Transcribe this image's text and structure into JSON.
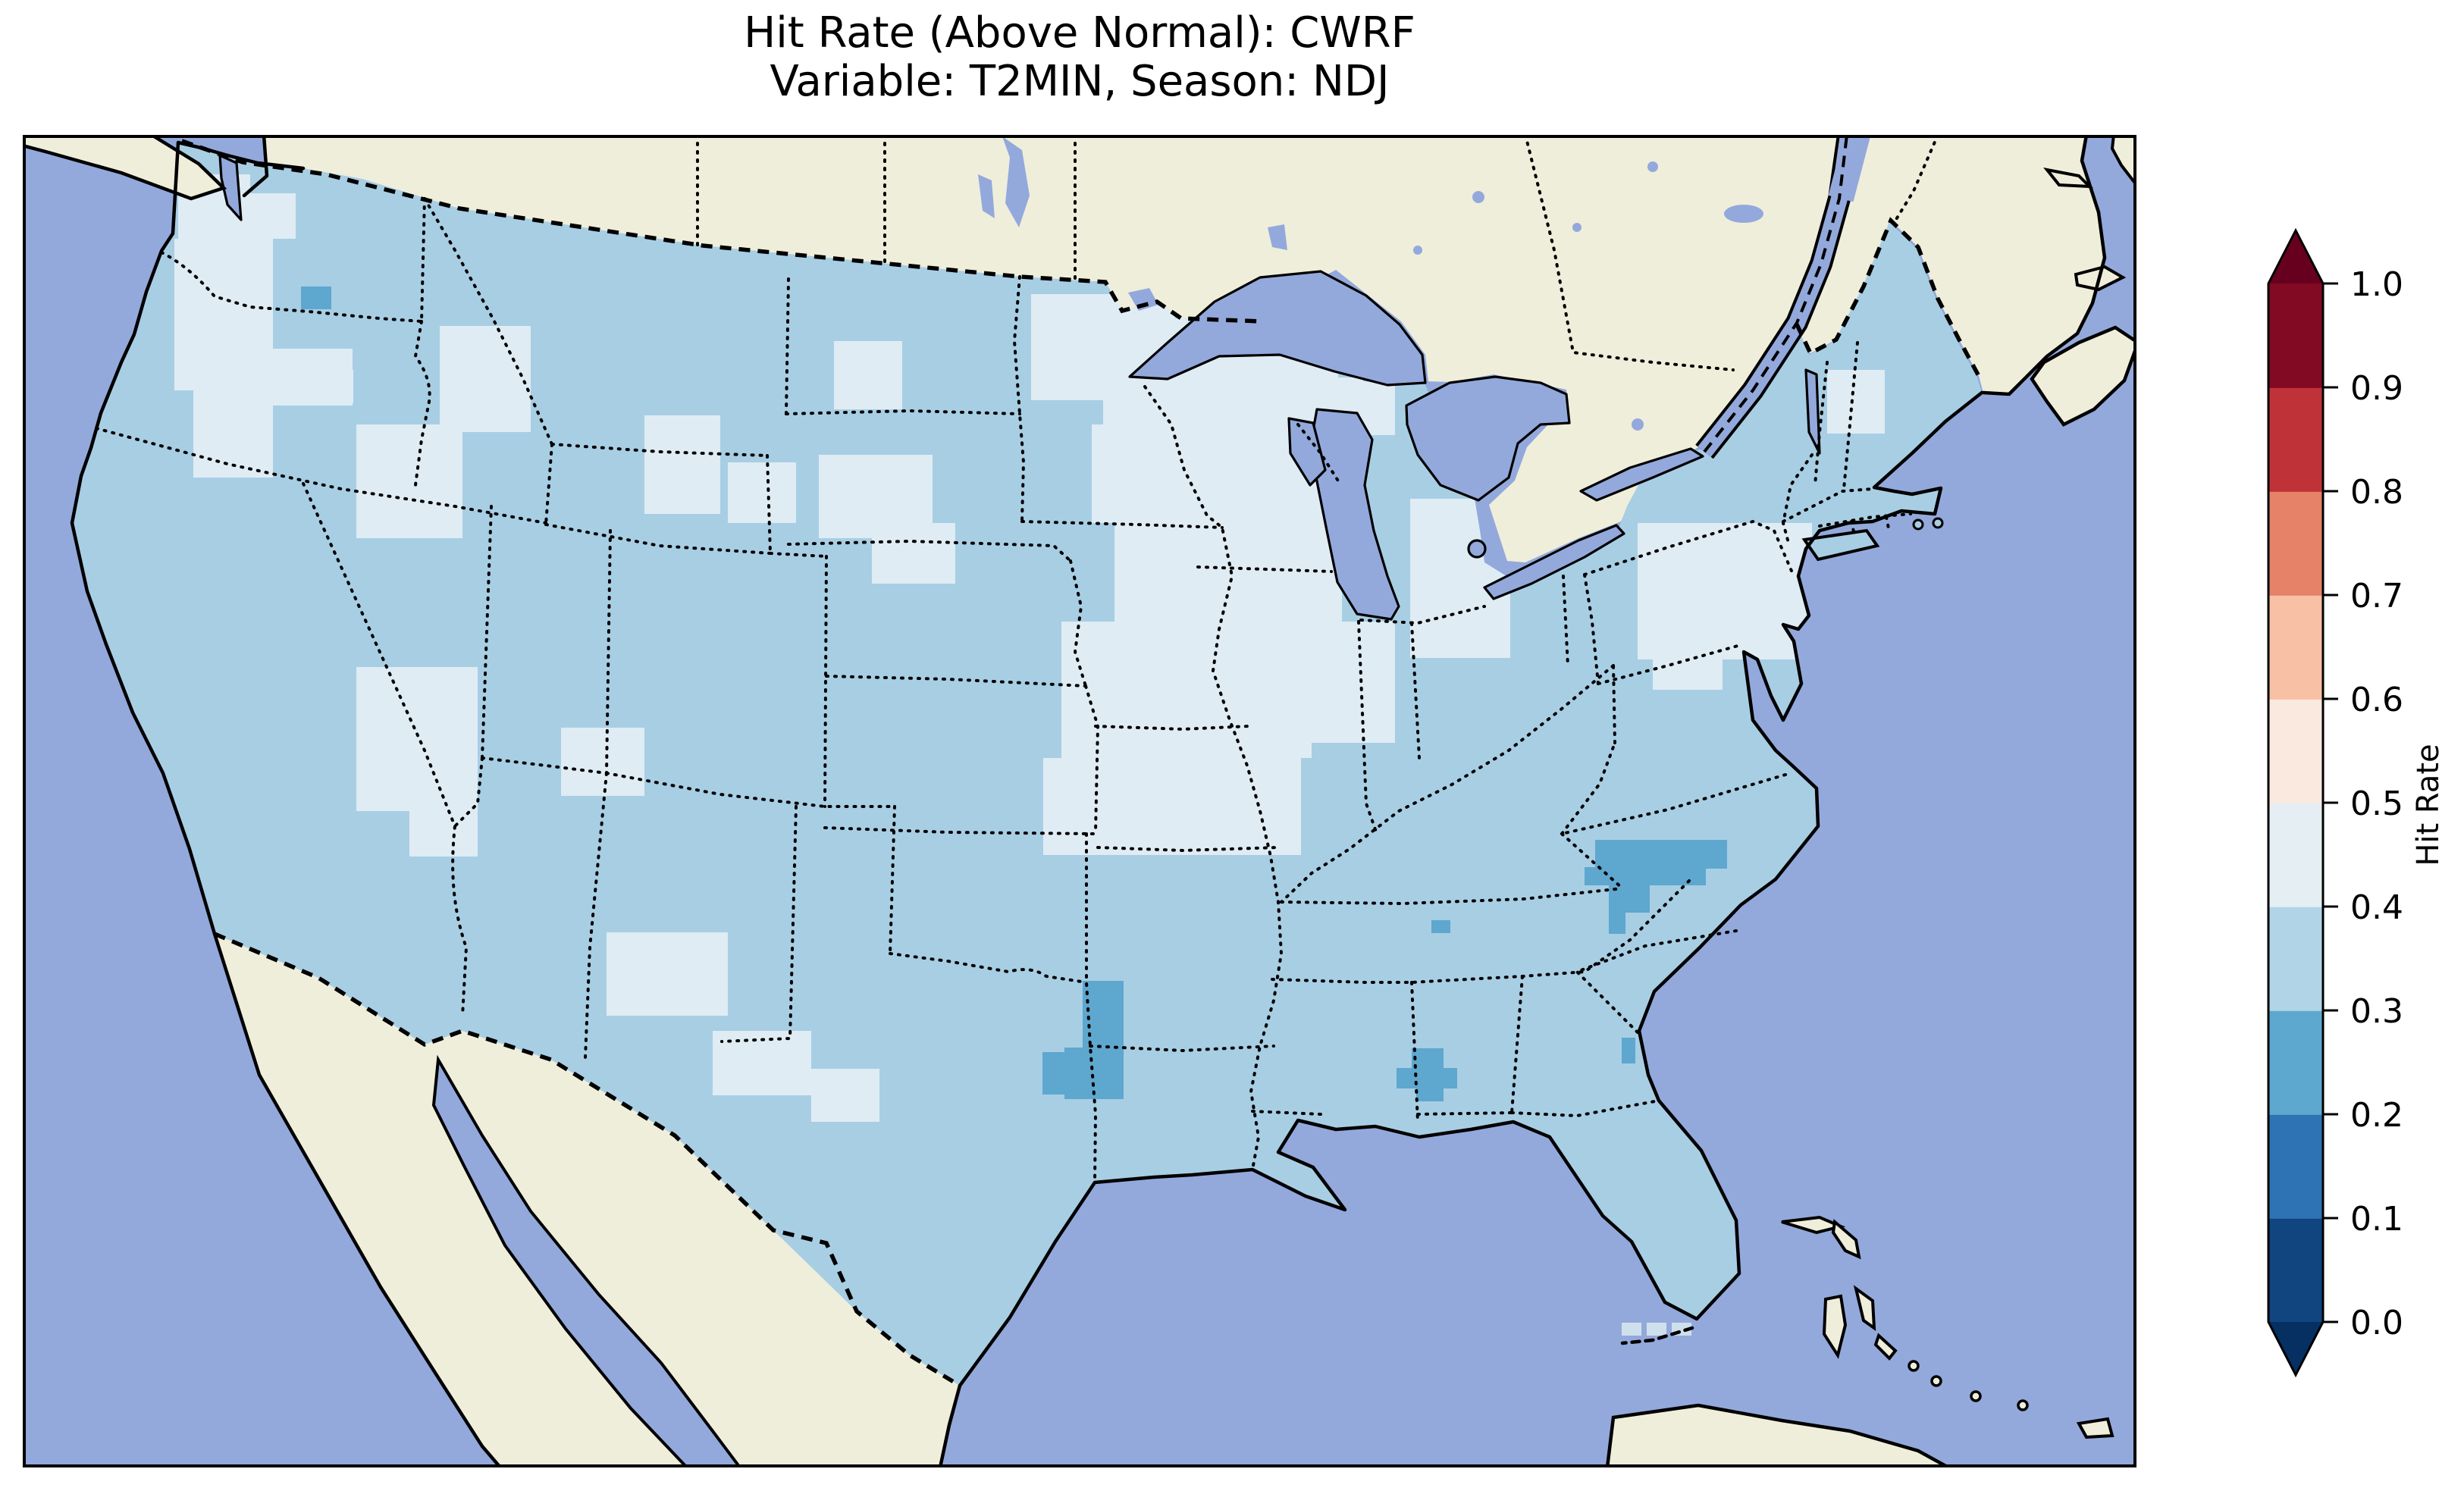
{
  "title": {
    "line1": "Hit Rate (Above Normal): CWRF",
    "line2": "Variable: T2MIN, Season: NDJ"
  },
  "colorbar": {
    "label": "Hit Rate",
    "ticks_top_to_bottom": [
      "1.0",
      "0.9",
      "0.8",
      "0.7",
      "0.6",
      "0.5",
      "0.4",
      "0.3",
      "0.2",
      "0.1",
      "0.0"
    ],
    "segments_bottom_to_top": [
      {
        "range": "0.0-0.1",
        "color": "#10457f"
      },
      {
        "range": "0.1-0.2",
        "color": "#2e73b4"
      },
      {
        "range": "0.2-0.3",
        "color": "#5da8cf"
      },
      {
        "range": "0.3-0.4",
        "color": "#b1d5e7"
      },
      {
        "range": "0.4-0.5",
        "color": "#e4eef3"
      },
      {
        "range": "0.5-0.6",
        "color": "#fae9df"
      },
      {
        "range": "0.6-0.7",
        "color": "#f8c0a4"
      },
      {
        "range": "0.7-0.8",
        "color": "#e58267"
      },
      {
        "range": "0.8-0.9",
        "color": "#bf3338"
      },
      {
        "range": "0.9-1.0",
        "color": "#820a23"
      }
    ],
    "extend_over_color": "#67001f",
    "extend_under_color": "#053061"
  },
  "map_colors": {
    "ocean": "#93a9dc",
    "foreign_land": "#efeedb",
    "coastline": "#000000"
  },
  "chart_data": {
    "type": "heatmap",
    "title": "Hit Rate (Above Normal): CWRF",
    "model": "CWRF",
    "metric": "Hit Rate (Above Normal)",
    "variable": "T2MIN",
    "season": "NDJ",
    "region": "Contiguous United States, gridded forecast verification map",
    "colorbar_label": "Hit Rate",
    "levels": [
      0.0,
      0.1,
      0.2,
      0.3,
      0.4,
      0.5,
      0.6,
      0.7,
      0.8,
      0.9,
      1.0
    ],
    "legend_position": "right vertical colorbar with extend arrows both ends",
    "bins": {
      "base": {
        "value_range": "0.3-0.4",
        "color": "#a8cee4",
        "note": "dominant hit-rate bin covering most of CONUS"
      },
      "light": {
        "value_range": "0.4-0.5",
        "color": "#dfecf4",
        "note": "higher hit-rate patches: Upper Midwest (MN/WI/IA/IL/MO), Pacific Northwest lowlands, central Idaho/Montana, Nevada/Utah, southern New Mexico, Michigan, upstate New York"
      },
      "dark": {
        "value_range": "0.2-0.3",
        "color": "#5ea7cf",
        "note": "lower hit-rate clusters: northeast Texas, central Alabama, Carolinas (NC/SC border), eastern Washington cell, west Tennessee cell, Georgia coast cell"
      },
      "faint": {
        "value_range": "0.4-0.5",
        "color": "#cfe0ed",
        "note": "isolated offshore cells near the Florida Keys"
      }
    },
    "coord_space": "map SVG viewBox 30 178 2788 1758 (page pixels)",
    "patches": {
      "light": [
        [
          235,
          230,
          95,
          95
        ],
        [
          330,
          255,
          60,
          60
        ],
        [
          230,
          315,
          130,
          200
        ],
        [
          255,
          500,
          105,
          130
        ],
        [
          360,
          460,
          105,
          75
        ],
        [
          430,
          488,
          36,
          44
        ],
        [
          470,
          560,
          140,
          150
        ],
        [
          580,
          430,
          120,
          140
        ],
        [
          850,
          548,
          100,
          130
        ],
        [
          960,
          610,
          90,
          80
        ],
        [
          1080,
          600,
          150,
          110
        ],
        [
          1150,
          690,
          110,
          80
        ],
        [
          1100,
          450,
          90,
          90
        ],
        [
          1360,
          388,
          170,
          140
        ],
        [
          1460,
          388,
          90,
          50
        ],
        [
          470,
          880,
          160,
          190
        ],
        [
          540,
          1060,
          90,
          70
        ],
        [
          740,
          960,
          110,
          90
        ],
        [
          800,
          1230,
          160,
          110
        ],
        [
          940,
          1360,
          130,
          85
        ],
        [
          1070,
          1410,
          90,
          70
        ],
        [
          1455,
          420,
          310,
          140
        ],
        [
          1440,
          560,
          330,
          130
        ],
        [
          1470,
          690,
          300,
          130
        ],
        [
          1400,
          820,
          330,
          180
        ],
        [
          1376,
          1000,
          340,
          128
        ],
        [
          1590,
          498,
          250,
          76
        ],
        [
          1860,
          658,
          132,
          210
        ],
        [
          1650,
          820,
          190,
          160
        ],
        [
          2160,
          690,
          230,
          180
        ],
        [
          2410,
          488,
          76,
          84
        ],
        [
          2180,
          844,
          92,
          66
        ]
      ],
      "dark": [
        [
          397,
          378,
          40,
          30
        ],
        [
          1428,
          1294,
          54,
          96
        ],
        [
          1404,
          1382,
          78,
          68
        ],
        [
          1375,
          1388,
          56,
          56
        ],
        [
          1888,
          1214,
          25,
          17
        ],
        [
          1862,
          1383,
          42,
          28
        ],
        [
          1842,
          1409,
          80,
          27
        ],
        [
          1868,
          1435,
          36,
          18
        ],
        [
          2104,
          1108,
          174,
          38
        ],
        [
          2090,
          1144,
          160,
          24
        ],
        [
          2122,
          1166,
          54,
          38
        ],
        [
          2122,
          1202,
          22,
          30
        ],
        [
          2228,
          1110,
          50,
          36
        ],
        [
          2139,
          1369,
          18,
          34
        ]
      ],
      "faint": [
        [
          2139,
          1745,
          26,
          17
        ],
        [
          2172,
          1745,
          26,
          17
        ],
        [
          2205,
          1745,
          26,
          17
        ]
      ]
    }
  }
}
